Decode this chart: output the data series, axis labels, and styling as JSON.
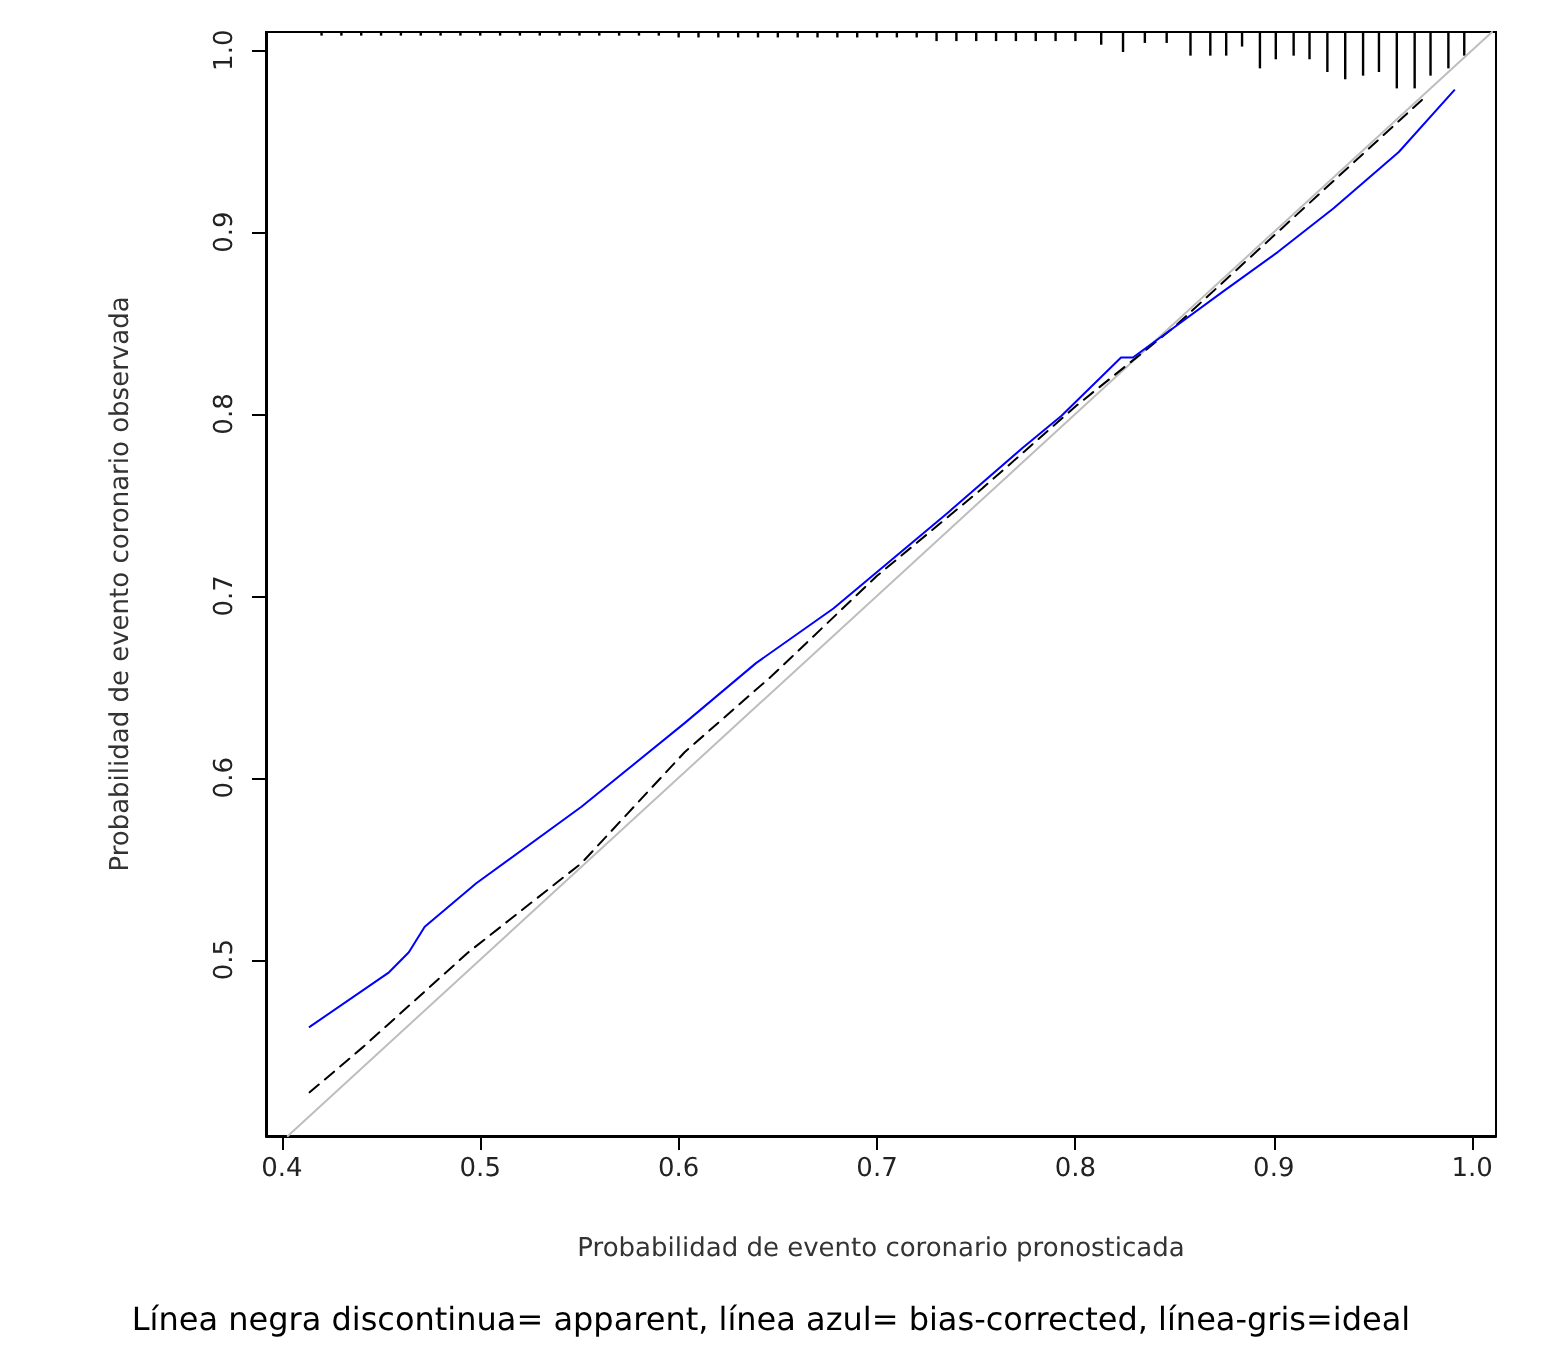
{
  "chart_data": {
    "type": "line",
    "xlabel": "Probabilidad de evento coronario pronosticada",
    "ylabel": "Probabilidad de evento coronario observada",
    "annotations": [
      "Línea negra discontinua= apparent, línea azul= bias-corrected, línea-gris=ideal"
    ],
    "xlim": [
      0.392,
      1.012
    ],
    "ylim": [
      0.403,
      1.01
    ],
    "xticks": [
      0.4,
      0.5,
      0.6,
      0.7,
      0.8,
      0.9,
      {
        "value": 1,
        "label": "1.0"
      }
    ],
    "yticks": [
      0.5,
      0.6,
      0.7,
      0.8,
      0.9,
      {
        "value": 1,
        "label": "1.0"
      }
    ],
    "marker": "none",
    "series": [
      {
        "color": "#bebebe",
        "x": [
          0.403,
          1.01
        ],
        "values": [
          0.403,
          1.01
        ]
      },
      {
        "type": "bar",
        "color": "#000000",
        "x": [
          0.42,
          0.43,
          0.44,
          0.45,
          0.46,
          0.47,
          0.48,
          0.49,
          0.5,
          0.51,
          0.52,
          0.53,
          0.54,
          0.55,
          0.56,
          0.57,
          0.58,
          0.59,
          0.6,
          0.61,
          0.62,
          0.63,
          0.64,
          0.65,
          0.66,
          0.67,
          0.68,
          0.69,
          0.7,
          0.71,
          0.72,
          0.73,
          0.74,
          0.75,
          0.76,
          0.77,
          0.78,
          0.79,
          0.8,
          0.813,
          0.824,
          0.835,
          0.846,
          0.858,
          0.868,
          0.876,
          0.884,
          0.893,
          0.901,
          0.91,
          0.918,
          0.927,
          0.936,
          0.945,
          0.953,
          0.962,
          0.971,
          0.979,
          0.988,
          0.996
        ],
        "base": [
          1.01,
          1.01,
          1.01,
          1.01,
          1.01,
          1.01,
          1.01,
          1.01,
          1.01,
          1.01,
          1.01,
          1.01,
          1.01,
          1.01,
          1.01,
          1.01,
          1.01,
          1.01,
          1.01,
          1.01,
          1.01,
          1.01,
          1.01,
          1.01,
          1.01,
          1.01,
          1.01,
          1.01,
          1.01,
          1.01,
          1.01,
          1.01,
          1.01,
          1.01,
          1.01,
          1.01,
          1.01,
          1.01,
          1.01,
          1.01,
          1.01,
          1.01,
          1.01,
          1.01,
          1.01,
          1.01,
          1.01,
          1.01,
          1.01,
          1.01,
          1.01,
          1.01,
          1.01,
          1.01,
          1.01,
          1.01,
          1.01,
          1.01,
          1.01,
          1.01
        ],
        "values": [
          -0.002,
          -0.002,
          -0.002,
          -0.002,
          -0.002,
          -0.002,
          -0.002,
          -0.002,
          -0.002,
          -0.002,
          -0.002,
          -0.002,
          -0.002,
          -0.002,
          -0.002,
          -0.002,
          -0.002,
          -0.002,
          -0.003,
          -0.003,
          -0.003,
          -0.003,
          -0.003,
          -0.003,
          -0.003,
          -0.003,
          -0.003,
          -0.003,
          -0.003,
          -0.003,
          -0.003,
          -0.005,
          -0.005,
          -0.005,
          -0.005,
          -0.005,
          -0.005,
          -0.005,
          -0.005,
          -0.007,
          -0.011,
          -0.006,
          -0.006,
          -0.013,
          -0.013,
          -0.013,
          -0.008,
          -0.02,
          -0.015,
          -0.013,
          -0.015,
          -0.022,
          -0.026,
          -0.024,
          -0.022,
          -0.031,
          -0.031,
          -0.024,
          -0.02,
          -0.013
        ]
      },
      {
        "color": "#000000",
        "line_style": "dashed",
        "x": [
          0.414,
          0.441,
          0.494,
          0.551,
          0.603,
          0.647,
          0.7,
          0.753,
          0.801,
          0.849,
          0.902,
          0.946,
          0.977
        ],
        "values": [
          0.427,
          0.452,
          0.504,
          0.553,
          0.614,
          0.656,
          0.711,
          0.759,
          0.805,
          0.847,
          0.9,
          0.944,
          0.975
        ]
      },
      {
        "color": "#0000ff",
        "line_style": "solid",
        "x": [
          0.414,
          0.454,
          0.464,
          0.472,
          0.498,
          0.551,
          0.603,
          0.639,
          0.678,
          0.736,
          0.773,
          0.793,
          0.823,
          0.829,
          0.849,
          0.874,
          0.902,
          0.93,
          0.963,
          0.991
        ],
        "values": [
          0.463,
          0.493,
          0.504,
          0.518,
          0.542,
          0.584,
          0.63,
          0.663,
          0.693,
          0.746,
          0.781,
          0.799,
          0.831,
          0.831,
          0.847,
          0.867,
          0.889,
          0.913,
          0.944,
          0.978
        ]
      }
    ]
  }
}
